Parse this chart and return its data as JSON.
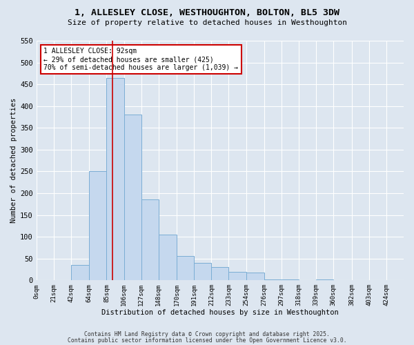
{
  "title_line1": "1, ALLESLEY CLOSE, WESTHOUGHTON, BOLTON, BL5 3DW",
  "title_line2": "Size of property relative to detached houses in Westhoughton",
  "xlabel": "Distribution of detached houses by size in Westhoughton",
  "ylabel": "Number of detached properties",
  "bar_color": "#c5d8ee",
  "bar_edge_color": "#7aadd4",
  "bin_labels": [
    "0sqm",
    "21sqm",
    "42sqm",
    "64sqm",
    "85sqm",
    "106sqm",
    "127sqm",
    "148sqm",
    "170sqm",
    "191sqm",
    "212sqm",
    "233sqm",
    "254sqm",
    "276sqm",
    "297sqm",
    "318sqm",
    "339sqm",
    "360sqm",
    "382sqm",
    "403sqm",
    "424sqm"
  ],
  "bar_heights": [
    1,
    0,
    35,
    250,
    465,
    380,
    185,
    105,
    55,
    40,
    30,
    20,
    18,
    2,
    2,
    0,
    2,
    0,
    0,
    0,
    0
  ],
  "ylim": [
    0,
    550
  ],
  "yticks": [
    0,
    50,
    100,
    150,
    200,
    250,
    300,
    350,
    400,
    450,
    500,
    550
  ],
  "red_line_x": 92,
  "red_line_color": "#cc0000",
  "annotation_text": "1 ALLESLEY CLOSE: 92sqm\n← 29% of detached houses are smaller (425)\n70% of semi-detached houses are larger (1,039) →",
  "annotation_box_color": "#ffffff",
  "annotation_box_edge_color": "#cc0000",
  "bg_color": "#dde6f0",
  "plot_bg_color": "#dde6f0",
  "footer_line1": "Contains HM Land Registry data © Crown copyright and database right 2025.",
  "footer_line2": "Contains public sector information licensed under the Open Government Licence v3.0.",
  "bin_edges": [
    0,
    21,
    42,
    64,
    85,
    106,
    127,
    148,
    170,
    191,
    212,
    233,
    254,
    276,
    297,
    318,
    339,
    360,
    382,
    403,
    424,
    445
  ]
}
